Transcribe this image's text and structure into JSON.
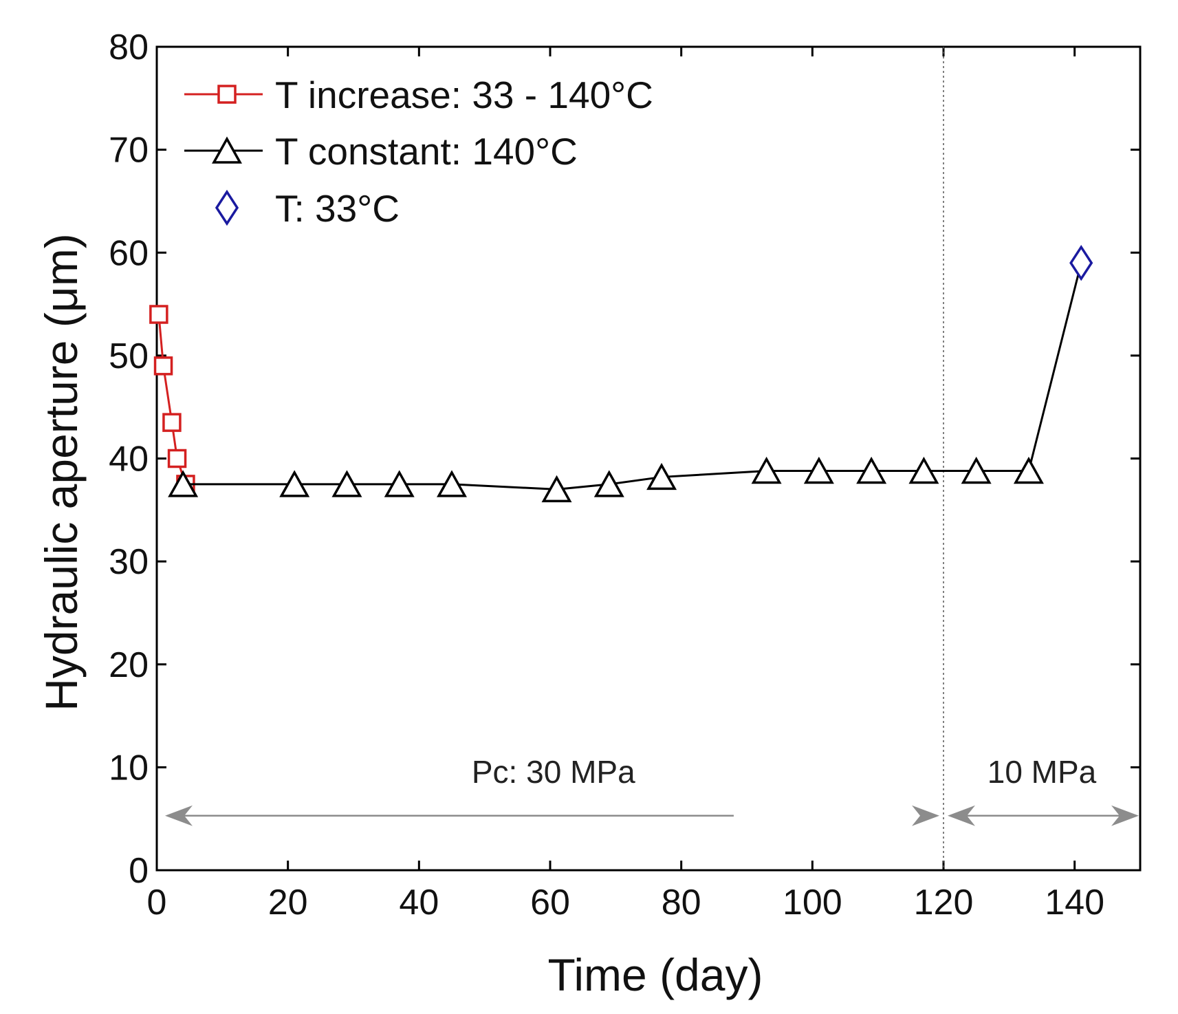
{
  "chart_data": {
    "type": "line",
    "title": "",
    "xlabel": "Time (day)",
    "ylabel": "Hydraulic aperture (μm)",
    "xlim": [
      0,
      150
    ],
    "ylim": [
      0,
      80
    ],
    "xticks": [
      0,
      20,
      40,
      60,
      80,
      100,
      120,
      140
    ],
    "yticks": [
      0,
      10,
      20,
      30,
      40,
      50,
      60,
      70,
      80
    ],
    "xtick_labels": [
      "0",
      "20",
      "40",
      "60",
      "80",
      "100",
      "120",
      "140"
    ],
    "ytick_labels": [
      "0",
      "10",
      "20",
      "30",
      "40",
      "50",
      "60",
      "70",
      "80"
    ],
    "grid": false,
    "legend_position": "top-left",
    "series": [
      {
        "name": "T increase: 33 - 140°C",
        "marker": "square",
        "color": "#d42020",
        "x": [
          0.3,
          1.0,
          2.3,
          3.1,
          4.4
        ],
        "y": [
          54.0,
          49.0,
          43.5,
          40.0,
          37.5
        ]
      },
      {
        "name": "T constant: 140°C",
        "marker": "triangle",
        "color": "#000000",
        "x": [
          4.0,
          21,
          29,
          37,
          45,
          61,
          69,
          77,
          93,
          101,
          109,
          117,
          125,
          133,
          141
        ],
        "y": [
          37.5,
          37.5,
          37.5,
          37.5,
          37.5,
          37.0,
          37.5,
          38.2,
          38.8,
          38.8,
          38.8,
          38.8,
          38.8,
          38.8,
          59.0
        ],
        "marker_count": 14
      },
      {
        "name": "T: 33°C",
        "marker": "diamond",
        "color": "#1a1aa0",
        "x": [
          141
        ],
        "y": [
          59.0
        ]
      }
    ],
    "annotations": {
      "divider_x": 120,
      "arrow_y": 5.3,
      "pc_30_label": "Pc: 30 MPa",
      "pc_10_label": "10 MPa",
      "pc_30_range": [
        0,
        120
      ],
      "pc_10_range": [
        120,
        150
      ],
      "arrow_color": "#8c8c8c"
    }
  }
}
